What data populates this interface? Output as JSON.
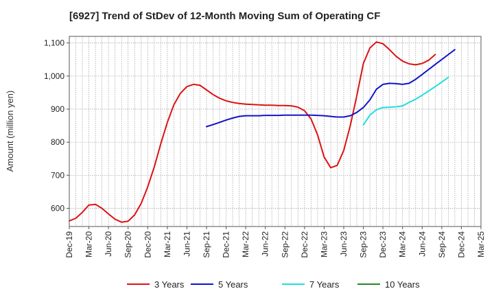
{
  "chart_data": {
    "type": "line",
    "title": "[6927]  Trend of StDev of 12-Month Moving Sum of Operating CF",
    "ylabel": "Amount (million yen)",
    "xlabel": "",
    "ylim": [
      545,
      1120
    ],
    "yticks": [
      600,
      700,
      800,
      900,
      1000,
      1100
    ],
    "ytick_labels": [
      "600",
      "700",
      "800",
      "900",
      "1,000",
      "1,100"
    ],
    "x_start": "Dec-19",
    "x_end": "Mar-25",
    "xtick_labels": [
      "Dec-19",
      "Mar-20",
      "Jun-20",
      "Sep-20",
      "Dec-20",
      "Mar-21",
      "Jun-21",
      "Sep-21",
      "Dec-21",
      "Mar-22",
      "Jun-22",
      "Sep-22",
      "Dec-22",
      "Mar-23",
      "Jun-23",
      "Sep-23",
      "Dec-23",
      "Mar-24",
      "Jun-24",
      "Sep-24",
      "Dec-24",
      "Mar-25"
    ],
    "grid": true,
    "legend_position": "bottom",
    "series": [
      {
        "name": "3 Years",
        "color": "#dd1111",
        "start": "Dec-19",
        "values": [
          562,
          570,
          588,
          610,
          612,
          600,
          583,
          567,
          558,
          561,
          580,
          615,
          665,
          725,
          795,
          860,
          913,
          948,
          968,
          975,
          972,
          958,
          944,
          933,
          925,
          920,
          917,
          915,
          914,
          913,
          912,
          912,
          911,
          911,
          910,
          906,
          895,
          870,
          822,
          755,
          723,
          730,
          775,
          850,
          940,
          1038,
          1085,
          1103,
          1098,
          1080,
          1060,
          1045,
          1037,
          1034,
          1038,
          1048,
          1065
        ]
      },
      {
        "name": "5 Years",
        "color": "#1111cc",
        "start": "Sep-21",
        "values": [
          847,
          853,
          860,
          867,
          873,
          878,
          880,
          880,
          880,
          881,
          881,
          881,
          882,
          882,
          882,
          882,
          882,
          881,
          880,
          878,
          876,
          876,
          880,
          890,
          905,
          928,
          960,
          975,
          978,
          977,
          975,
          978,
          990,
          1005,
          1020,
          1035,
          1050,
          1065,
          1080
        ]
      },
      {
        "name": "7 Years",
        "color": "#22dddd",
        "start": "Sep-23",
        "values": [
          852,
          882,
          898,
          905,
          906,
          907,
          910,
          920,
          930,
          942,
          955,
          968,
          982,
          996
        ]
      },
      {
        "name": "10 Years",
        "color": "#228822",
        "start": "",
        "values": []
      }
    ]
  }
}
